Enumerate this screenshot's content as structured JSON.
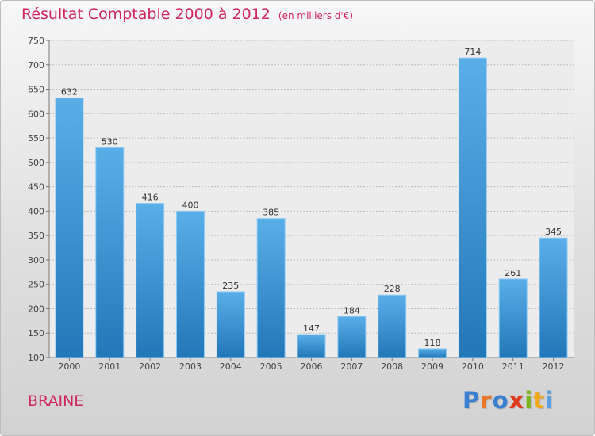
{
  "header": {
    "title": "Résultat Comptable 2000 à 2012",
    "subtitle": "(en milliers d'€)"
  },
  "footer": {
    "city": "BRAINE",
    "brand": "Proxiti"
  },
  "colors": {
    "title": "#d0265c",
    "bar_top": "#5aaee8",
    "bar_bottom": "#2277b8",
    "grid": "#bcbcbc",
    "logo_letters": [
      "#3a7fd0",
      "#e8772a",
      "#3a7fd0",
      "#e03a1e",
      "#7ab51d",
      "#f0a81d",
      "#5aa0e0"
    ]
  },
  "chart_data": {
    "type": "bar",
    "title": "Résultat Comptable 2000 à 2012",
    "subtitle": "(en milliers d'€)",
    "categories": [
      "2000",
      "2001",
      "2002",
      "2003",
      "2004",
      "2005",
      "2006",
      "2007",
      "2008",
      "2009",
      "2010",
      "2011",
      "2012"
    ],
    "values": [
      632,
      530,
      416,
      400,
      235,
      385,
      147,
      184,
      228,
      118,
      714,
      261,
      345
    ],
    "xlabel": "",
    "ylabel": "",
    "ylim": [
      100,
      750
    ],
    "yticks": [
      100,
      150,
      200,
      250,
      300,
      350,
      400,
      450,
      500,
      550,
      600,
      650,
      700,
      750
    ],
    "grid": true,
    "legend": "none"
  }
}
